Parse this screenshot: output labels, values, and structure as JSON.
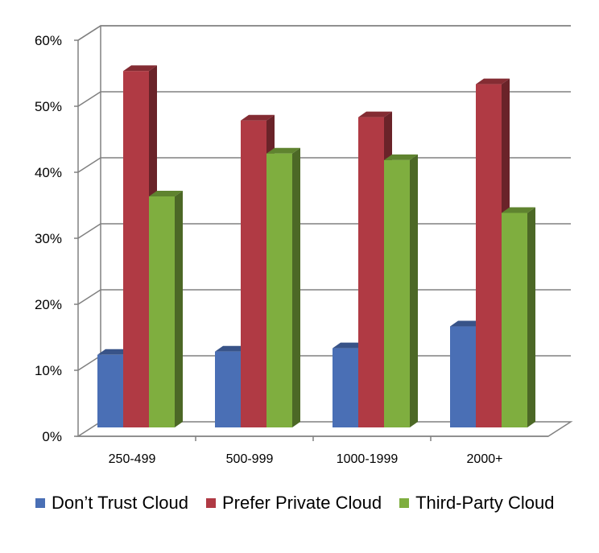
{
  "chart_data": {
    "type": "bar",
    "categories": [
      "250-499",
      "500-999",
      "1000-1999",
      "2000+"
    ],
    "series": [
      {
        "name": "Don’t Trust Cloud",
        "color": "#4a6fb5",
        "values": [
          11,
          11.5,
          12,
          15.3
        ]
      },
      {
        "name": "Prefer Private Cloud",
        "color": "#b03a44",
        "values": [
          54,
          46.5,
          47,
          52
        ]
      },
      {
        "name": "Third-Party Cloud",
        "color": "#7fae3f",
        "values": [
          35,
          41.5,
          40.5,
          32.5
        ]
      }
    ],
    "ylim": [
      0,
      60
    ],
    "yticks": [
      "0%",
      "10%",
      "20%",
      "30%",
      "40%",
      "50%",
      "60%"
    ],
    "grid": true,
    "legend_position": "bottom"
  }
}
